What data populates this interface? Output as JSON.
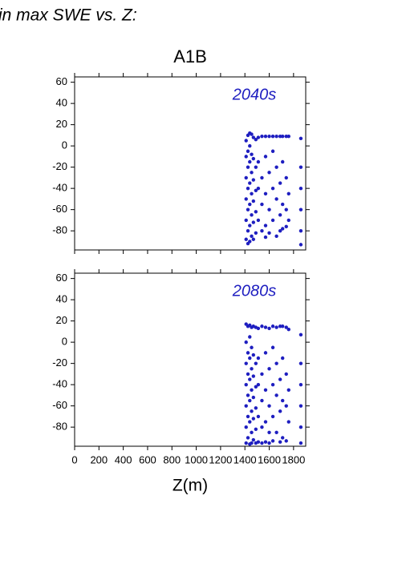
{
  "header": {
    "text": "in max SWE vs. Z:"
  },
  "chart_data": [
    {
      "type": "scatter",
      "title": "A1B",
      "annotation": "2040s",
      "color": "#1e1ec0",
      "xlim": [
        0,
        1900
      ],
      "xticks": [
        0,
        200,
        400,
        600,
        800,
        1000,
        1200,
        1400,
        1600,
        1800
      ],
      "ylim": [
        -98,
        65
      ],
      "yticks": [
        -80,
        -60,
        -40,
        -20,
        0,
        20,
        40,
        60
      ],
      "x": [
        1410,
        1410,
        1410,
        1410,
        1410,
        1410,
        1425,
        1425,
        1425,
        1425,
        1425,
        1425,
        1425,
        1440,
        1440,
        1440,
        1440,
        1440,
        1440,
        1440,
        1455,
        1455,
        1455,
        1455,
        1455,
        1455,
        1470,
        1470,
        1470,
        1470,
        1470,
        1470,
        1490,
        1490,
        1490,
        1490,
        1490,
        1510,
        1510,
        1510,
        1510,
        1540,
        1540,
        1540,
        1540,
        1570,
        1570,
        1570,
        1570,
        1570,
        1600,
        1600,
        1600,
        1600,
        1630,
        1630,
        1630,
        1630,
        1660,
        1660,
        1660,
        1660,
        1690,
        1690,
        1690,
        1690,
        1710,
        1710,
        1710,
        1710,
        1740,
        1740,
        1740,
        1740,
        1760,
        1760,
        1760,
        1860,
        1860,
        1860,
        1860,
        1860,
        1860
      ],
      "y": [
        5,
        -10,
        -30,
        -50,
        -70,
        -88,
        10,
        -5,
        -20,
        -40,
        -60,
        -80,
        -92,
        12,
        0,
        -15,
        -35,
        -55,
        -75,
        -90,
        11,
        -8,
        -25,
        -45,
        -65,
        -85,
        8,
        -12,
        -32,
        -52,
        -72,
        -88,
        6,
        -20,
        -42,
        -62,
        -82,
        8,
        -15,
        -40,
        -70,
        9,
        -30,
        -55,
        -80,
        9,
        -10,
        -45,
        -75,
        -86,
        9,
        -25,
        -60,
        -82,
        9,
        -5,
        -40,
        -70,
        9,
        -20,
        -50,
        -85,
        9,
        -35,
        -65,
        -80,
        9,
        -15,
        -55,
        -78,
        9,
        -30,
        -60,
        -76,
        9,
        -45,
        -70,
        7,
        -20,
        -40,
        -60,
        -80,
        -93
      ]
    },
    {
      "type": "scatter",
      "annotation": "2080s",
      "xlabel": "Z(m)",
      "color": "#1e1ec0",
      "xlim": [
        0,
        1900
      ],
      "xticks": [
        0,
        200,
        400,
        600,
        800,
        1000,
        1200,
        1400,
        1600,
        1800
      ],
      "ylim": [
        -98,
        65
      ],
      "yticks": [
        -80,
        -60,
        -40,
        -20,
        0,
        20,
        40,
        60
      ],
      "x": [
        1410,
        1410,
        1410,
        1410,
        1410,
        1410,
        1410,
        1425,
        1425,
        1425,
        1425,
        1425,
        1425,
        1440,
        1440,
        1440,
        1440,
        1440,
        1440,
        1440,
        1455,
        1455,
        1455,
        1455,
        1455,
        1455,
        1455,
        1470,
        1470,
        1470,
        1470,
        1470,
        1470,
        1490,
        1490,
        1490,
        1490,
        1490,
        1490,
        1510,
        1510,
        1510,
        1510,
        1510,
        1540,
        1540,
        1540,
        1540,
        1540,
        1570,
        1570,
        1570,
        1570,
        1570,
        1600,
        1600,
        1600,
        1600,
        1600,
        1630,
        1630,
        1630,
        1630,
        1630,
        1660,
        1660,
        1660,
        1660,
        1690,
        1690,
        1690,
        1690,
        1710,
        1710,
        1710,
        1710,
        1740,
        1740,
        1740,
        1740,
        1760,
        1760,
        1760,
        1860,
        1860,
        1860,
        1860,
        1860,
        1860
      ],
      "y": [
        17,
        0,
        -20,
        -40,
        -60,
        -80,
        -95,
        15,
        -10,
        -30,
        -50,
        -70,
        -90,
        16,
        5,
        -15,
        -35,
        -55,
        -75,
        -96,
        14,
        -5,
        -25,
        -45,
        -65,
        -85,
        -95,
        15,
        -12,
        -32,
        -52,
        -72,
        -92,
        14,
        -20,
        -42,
        -62,
        -82,
        -95,
        13,
        -15,
        -40,
        -70,
        -94,
        15,
        -30,
        -55,
        -80,
        -95,
        14,
        -10,
        -45,
        -75,
        -94,
        13,
        -25,
        -60,
        -85,
        -95,
        15,
        -5,
        -40,
        -70,
        -93,
        14,
        -20,
        -50,
        -85,
        15,
        -35,
        -65,
        -94,
        15,
        -15,
        -55,
        -90,
        14,
        -30,
        -60,
        -93,
        12,
        -45,
        -75,
        7,
        -20,
        -40,
        -60,
        -80,
        -95
      ]
    }
  ]
}
